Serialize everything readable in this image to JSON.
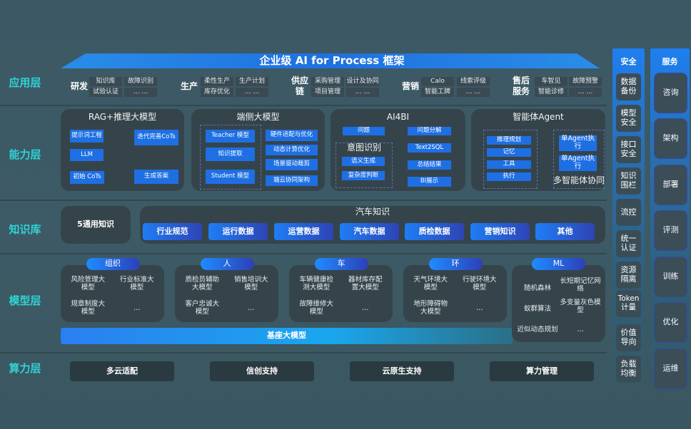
{
  "title": "企业级 AI for Process 框架",
  "layers": {
    "app": "应用层",
    "capability": "能力层",
    "knowledge": "知识库",
    "model": "模型层",
    "compute": "算力层"
  },
  "app": [
    {
      "name": "研发",
      "items": [
        "知识库",
        "故障识别",
        "试验认证",
        "… …"
      ]
    },
    {
      "name": "生产",
      "items": [
        "柔性生产",
        "生产计划",
        "库存优化",
        "… …"
      ]
    },
    {
      "name": "供应链",
      "items": [
        "采购管理",
        "设计及协同",
        "项目管理",
        "… …"
      ]
    },
    {
      "name": "营销",
      "items": [
        "Calo",
        "线索评级",
        "智能工牌",
        "… …"
      ]
    },
    {
      "name": "售后服务",
      "items": [
        "车智见",
        "故障预警",
        "智能诊修",
        "… …"
      ]
    }
  ],
  "capability": {
    "rag": {
      "title": "RAG+推理大模型",
      "items": [
        "提示词工程",
        "LLM",
        "初始 CoTs",
        "迭代完善CoTs",
        "生成答案"
      ]
    },
    "edge": {
      "title": "端侧大模型",
      "items": [
        "Teacher 模型",
        "知识提取",
        "Student 模型",
        "硬件适配与优化",
        "动态计算优化",
        "场景驱动裁剪",
        "端云协同架构"
      ]
    },
    "ai4bi": {
      "title": "AI4BI",
      "items": [
        "问题",
        "意图识别",
        "语义生成",
        "复杂度判断",
        "问题分解",
        "Text2SQL",
        "总结结果",
        "BI展示"
      ]
    },
    "agent": {
      "title": "智能体Agent",
      "items": [
        "推理规划",
        "记忆",
        "工具",
        "执行",
        "单Agent执行",
        "单Agent执行",
        "多智能体协同"
      ]
    }
  },
  "knowledge": {
    "general": "5通用知识",
    "auto_title": "汽车知识",
    "auto_items": [
      "行业规范",
      "运行数据",
      "运营数据",
      "汽车数据",
      "质检数据",
      "营销知识",
      "其他"
    ]
  },
  "model": {
    "groups": [
      {
        "name": "组织",
        "items": [
          "风险管理大模型",
          "行业标准大模型",
          "规章制度大模型",
          "…"
        ]
      },
      {
        "name": "人",
        "items": [
          "质检员辅助大模型",
          "销售培训大模型",
          "客户忠诚大模型",
          "…"
        ]
      },
      {
        "name": "车",
        "items": [
          "车辆健康检测大模型",
          "器材库存配置大模型",
          "故障维修大模型",
          "…"
        ]
      },
      {
        "name": "环",
        "items": [
          "天气环境大模型",
          "行驶环境大模型",
          "地形障碍物大模型",
          "…"
        ]
      },
      {
        "name": "ML",
        "items": [
          "随机森林",
          "长短期记忆网络",
          "蚁群算法",
          "多变量灰色模型",
          "近似动态规划",
          "…"
        ]
      }
    ],
    "base": "基座大模型"
  },
  "compute": [
    "多云适配",
    "信创支持",
    "云原生支持",
    "算力管理"
  ],
  "security": {
    "title": "安全",
    "items": [
      "数据备份",
      "模型安全",
      "接口安全",
      "知识围栏",
      "流控",
      "统一认证",
      "资源隔离",
      "Token计量",
      "价值导向",
      "负载均衡"
    ]
  },
  "service": {
    "title": "服务",
    "items": [
      "咨询",
      "架构",
      "部署",
      "评测",
      "训练",
      "优化",
      "运维"
    ]
  },
  "colors": {
    "accent": "#2fd3d6",
    "blue": "#1e6fe3",
    "card": "#35444b"
  }
}
